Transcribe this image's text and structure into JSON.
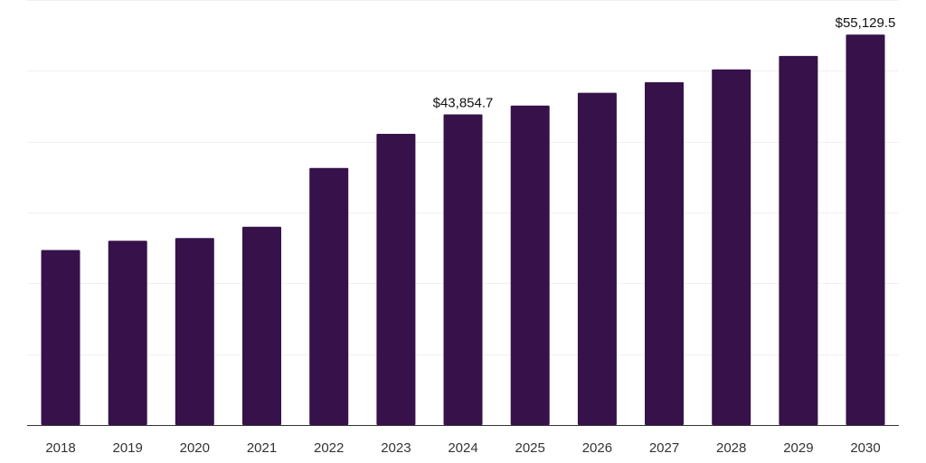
{
  "chart_data": {
    "type": "bar",
    "title": "",
    "xlabel": "",
    "ylabel": "",
    "categories": [
      "2018",
      "2019",
      "2020",
      "2021",
      "2022",
      "2023",
      "2024",
      "2025",
      "2026",
      "2027",
      "2028",
      "2029",
      "2030"
    ],
    "values": [
      24700,
      26000,
      26400,
      28000,
      36300,
      41100,
      43854.7,
      45100,
      46900,
      48400,
      50200,
      52100,
      55129.5
    ],
    "data_labels": [
      {
        "category": "2024",
        "text": "$43,854.7"
      },
      {
        "category": "2030",
        "text": "$55,129.5"
      }
    ],
    "ylim": [
      0,
      60000
    ],
    "y_grid_step": 10000,
    "grid": true,
    "y_axis_labels_visible": false,
    "legend": "none",
    "colors": {
      "bar": "#36114a",
      "gridline": "#f0f0f0",
      "baseline": "#333333"
    }
  }
}
